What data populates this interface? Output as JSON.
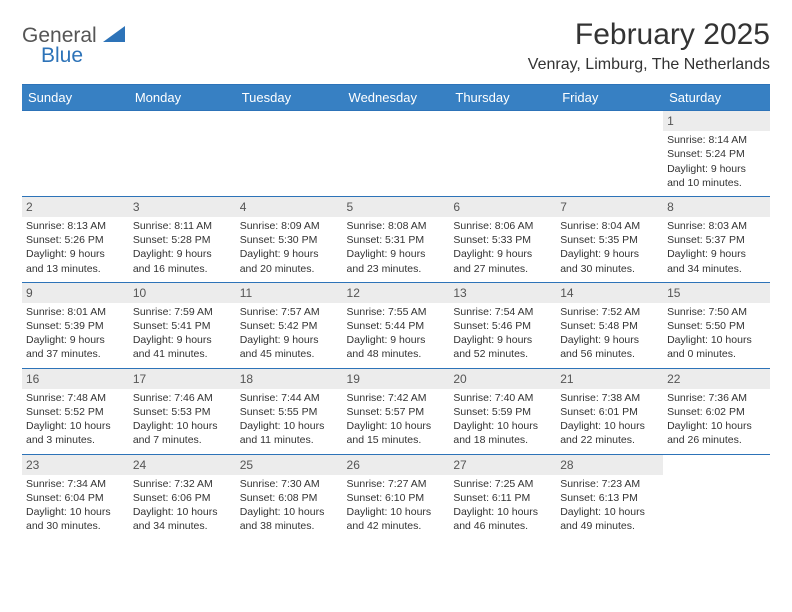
{
  "logo": {
    "text1": "General",
    "text2": "Blue",
    "shape_color": "#2d73b8"
  },
  "title": "February 2025",
  "location": "Venray, Limburg, The Netherlands",
  "colors": {
    "header_bg": "#3780c3",
    "header_text": "#ffffff",
    "rule": "#2d73b8",
    "daynum_bg": "#ececec",
    "text": "#333333"
  },
  "day_names": [
    "Sunday",
    "Monday",
    "Tuesday",
    "Wednesday",
    "Thursday",
    "Friday",
    "Saturday"
  ],
  "weeks": [
    [
      null,
      null,
      null,
      null,
      null,
      null,
      {
        "n": "1",
        "sr": "8:14 AM",
        "ss": "5:24 PM",
        "dl": "9 hours and 10 minutes."
      }
    ],
    [
      {
        "n": "2",
        "sr": "8:13 AM",
        "ss": "5:26 PM",
        "dl": "9 hours and 13 minutes."
      },
      {
        "n": "3",
        "sr": "8:11 AM",
        "ss": "5:28 PM",
        "dl": "9 hours and 16 minutes."
      },
      {
        "n": "4",
        "sr": "8:09 AM",
        "ss": "5:30 PM",
        "dl": "9 hours and 20 minutes."
      },
      {
        "n": "5",
        "sr": "8:08 AM",
        "ss": "5:31 PM",
        "dl": "9 hours and 23 minutes."
      },
      {
        "n": "6",
        "sr": "8:06 AM",
        "ss": "5:33 PM",
        "dl": "9 hours and 27 minutes."
      },
      {
        "n": "7",
        "sr": "8:04 AM",
        "ss": "5:35 PM",
        "dl": "9 hours and 30 minutes."
      },
      {
        "n": "8",
        "sr": "8:03 AM",
        "ss": "5:37 PM",
        "dl": "9 hours and 34 minutes."
      }
    ],
    [
      {
        "n": "9",
        "sr": "8:01 AM",
        "ss": "5:39 PM",
        "dl": "9 hours and 37 minutes."
      },
      {
        "n": "10",
        "sr": "7:59 AM",
        "ss": "5:41 PM",
        "dl": "9 hours and 41 minutes."
      },
      {
        "n": "11",
        "sr": "7:57 AM",
        "ss": "5:42 PM",
        "dl": "9 hours and 45 minutes."
      },
      {
        "n": "12",
        "sr": "7:55 AM",
        "ss": "5:44 PM",
        "dl": "9 hours and 48 minutes."
      },
      {
        "n": "13",
        "sr": "7:54 AM",
        "ss": "5:46 PM",
        "dl": "9 hours and 52 minutes."
      },
      {
        "n": "14",
        "sr": "7:52 AM",
        "ss": "5:48 PM",
        "dl": "9 hours and 56 minutes."
      },
      {
        "n": "15",
        "sr": "7:50 AM",
        "ss": "5:50 PM",
        "dl": "10 hours and 0 minutes."
      }
    ],
    [
      {
        "n": "16",
        "sr": "7:48 AM",
        "ss": "5:52 PM",
        "dl": "10 hours and 3 minutes."
      },
      {
        "n": "17",
        "sr": "7:46 AM",
        "ss": "5:53 PM",
        "dl": "10 hours and 7 minutes."
      },
      {
        "n": "18",
        "sr": "7:44 AM",
        "ss": "5:55 PM",
        "dl": "10 hours and 11 minutes."
      },
      {
        "n": "19",
        "sr": "7:42 AM",
        "ss": "5:57 PM",
        "dl": "10 hours and 15 minutes."
      },
      {
        "n": "20",
        "sr": "7:40 AM",
        "ss": "5:59 PM",
        "dl": "10 hours and 18 minutes."
      },
      {
        "n": "21",
        "sr": "7:38 AM",
        "ss": "6:01 PM",
        "dl": "10 hours and 22 minutes."
      },
      {
        "n": "22",
        "sr": "7:36 AM",
        "ss": "6:02 PM",
        "dl": "10 hours and 26 minutes."
      }
    ],
    [
      {
        "n": "23",
        "sr": "7:34 AM",
        "ss": "6:04 PM",
        "dl": "10 hours and 30 minutes."
      },
      {
        "n": "24",
        "sr": "7:32 AM",
        "ss": "6:06 PM",
        "dl": "10 hours and 34 minutes."
      },
      {
        "n": "25",
        "sr": "7:30 AM",
        "ss": "6:08 PM",
        "dl": "10 hours and 38 minutes."
      },
      {
        "n": "26",
        "sr": "7:27 AM",
        "ss": "6:10 PM",
        "dl": "10 hours and 42 minutes."
      },
      {
        "n": "27",
        "sr": "7:25 AM",
        "ss": "6:11 PM",
        "dl": "10 hours and 46 minutes."
      },
      {
        "n": "28",
        "sr": "7:23 AM",
        "ss": "6:13 PM",
        "dl": "10 hours and 49 minutes."
      },
      null
    ]
  ],
  "labels": {
    "sunrise": "Sunrise:",
    "sunset": "Sunset:",
    "daylight": "Daylight:"
  }
}
